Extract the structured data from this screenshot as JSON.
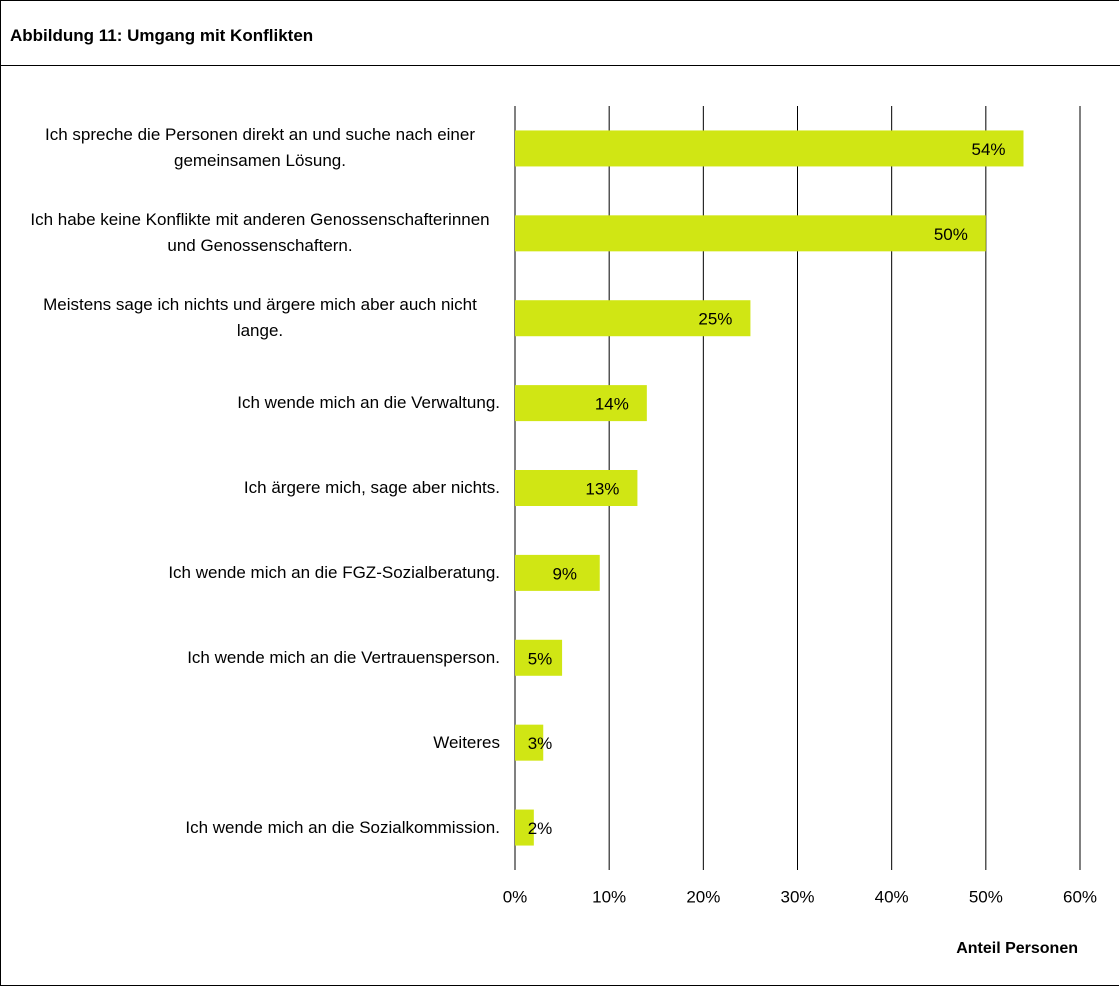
{
  "chart_data": {
    "type": "barh",
    "title": "Abbildung 11: Umgang mit Konflikten",
    "categories": [
      "Ich spreche die Personen direkt an und suche nach einer gemeinsamen Lösung.",
      "Ich habe keine Konflikte mit anderen Genossenschafterinnen und Genossenschaftern.",
      "Meistens sage ich nichts und ärgere mich aber auch nicht lange.",
      "Ich wende mich an die Verwaltung.",
      "Ich ärgere mich, sage aber nichts.",
      "Ich wende mich an die FGZ-Sozialberatung.",
      "Ich wende mich an die Vertrauensperson.",
      "Weiteres",
      "Ich wende mich an die Sozialkommission."
    ],
    "values": [
      54,
      50,
      25,
      14,
      13,
      9,
      5,
      3,
      2
    ],
    "value_labels": [
      "54%",
      "50%",
      "25%",
      "14%",
      "13%",
      "9%",
      "5%",
      "3%",
      "2%"
    ],
    "color": "#d0e614",
    "xlim": [
      0,
      60
    ],
    "xticks": [
      {
        "value": 0,
        "label": "0%"
      },
      {
        "value": 10,
        "label": "10%"
      },
      {
        "value": 20,
        "label": "20%"
      },
      {
        "value": 30,
        "label": "30%"
      },
      {
        "value": 40,
        "label": "40%"
      },
      {
        "value": 50,
        "label": "50%"
      },
      {
        "value": 60,
        "label": "60%"
      }
    ],
    "xlabel": "Anteil Personen",
    "grid": true
  }
}
